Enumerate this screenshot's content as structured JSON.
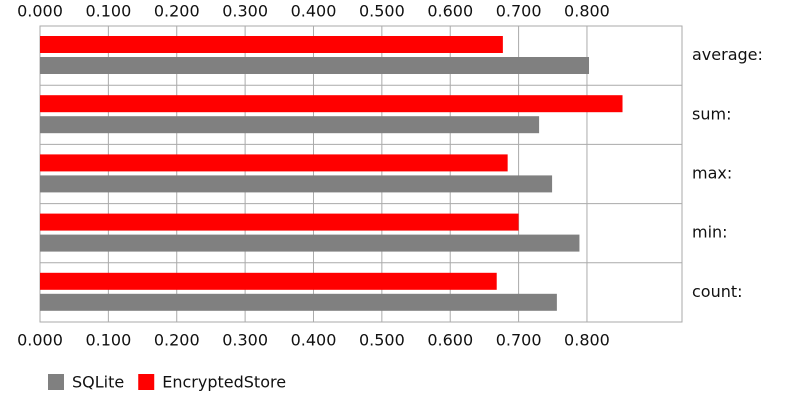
{
  "chart_data": {
    "type": "hbar",
    "categories": [
      "average:",
      "sum:",
      "max:",
      "min:",
      "count:"
    ],
    "series": [
      {
        "name": "SQLite",
        "color": "#808080",
        "values": [
          0.803,
          0.73,
          0.749,
          0.789,
          0.756
        ]
      },
      {
        "name": "EncryptedStore",
        "color": "#ff0000",
        "values": [
          0.677,
          0.852,
          0.684,
          0.7,
          0.668
        ]
      }
    ],
    "xlim": [
      0,
      0.939
    ],
    "xticks": [
      {
        "value": 0,
        "label": "0.000"
      },
      {
        "value": 0.1,
        "label": "0.100"
      },
      {
        "value": 0.2,
        "label": "0.200"
      },
      {
        "value": 0.3,
        "label": "0.300"
      },
      {
        "value": 0.4,
        "label": "0.400"
      },
      {
        "value": 0.5,
        "label": "0.500"
      },
      {
        "value": 0.6,
        "label": "0.600"
      },
      {
        "value": 0.7,
        "label": "0.700"
      },
      {
        "value": 0.8,
        "label": "0.800"
      }
    ],
    "grid": true
  }
}
